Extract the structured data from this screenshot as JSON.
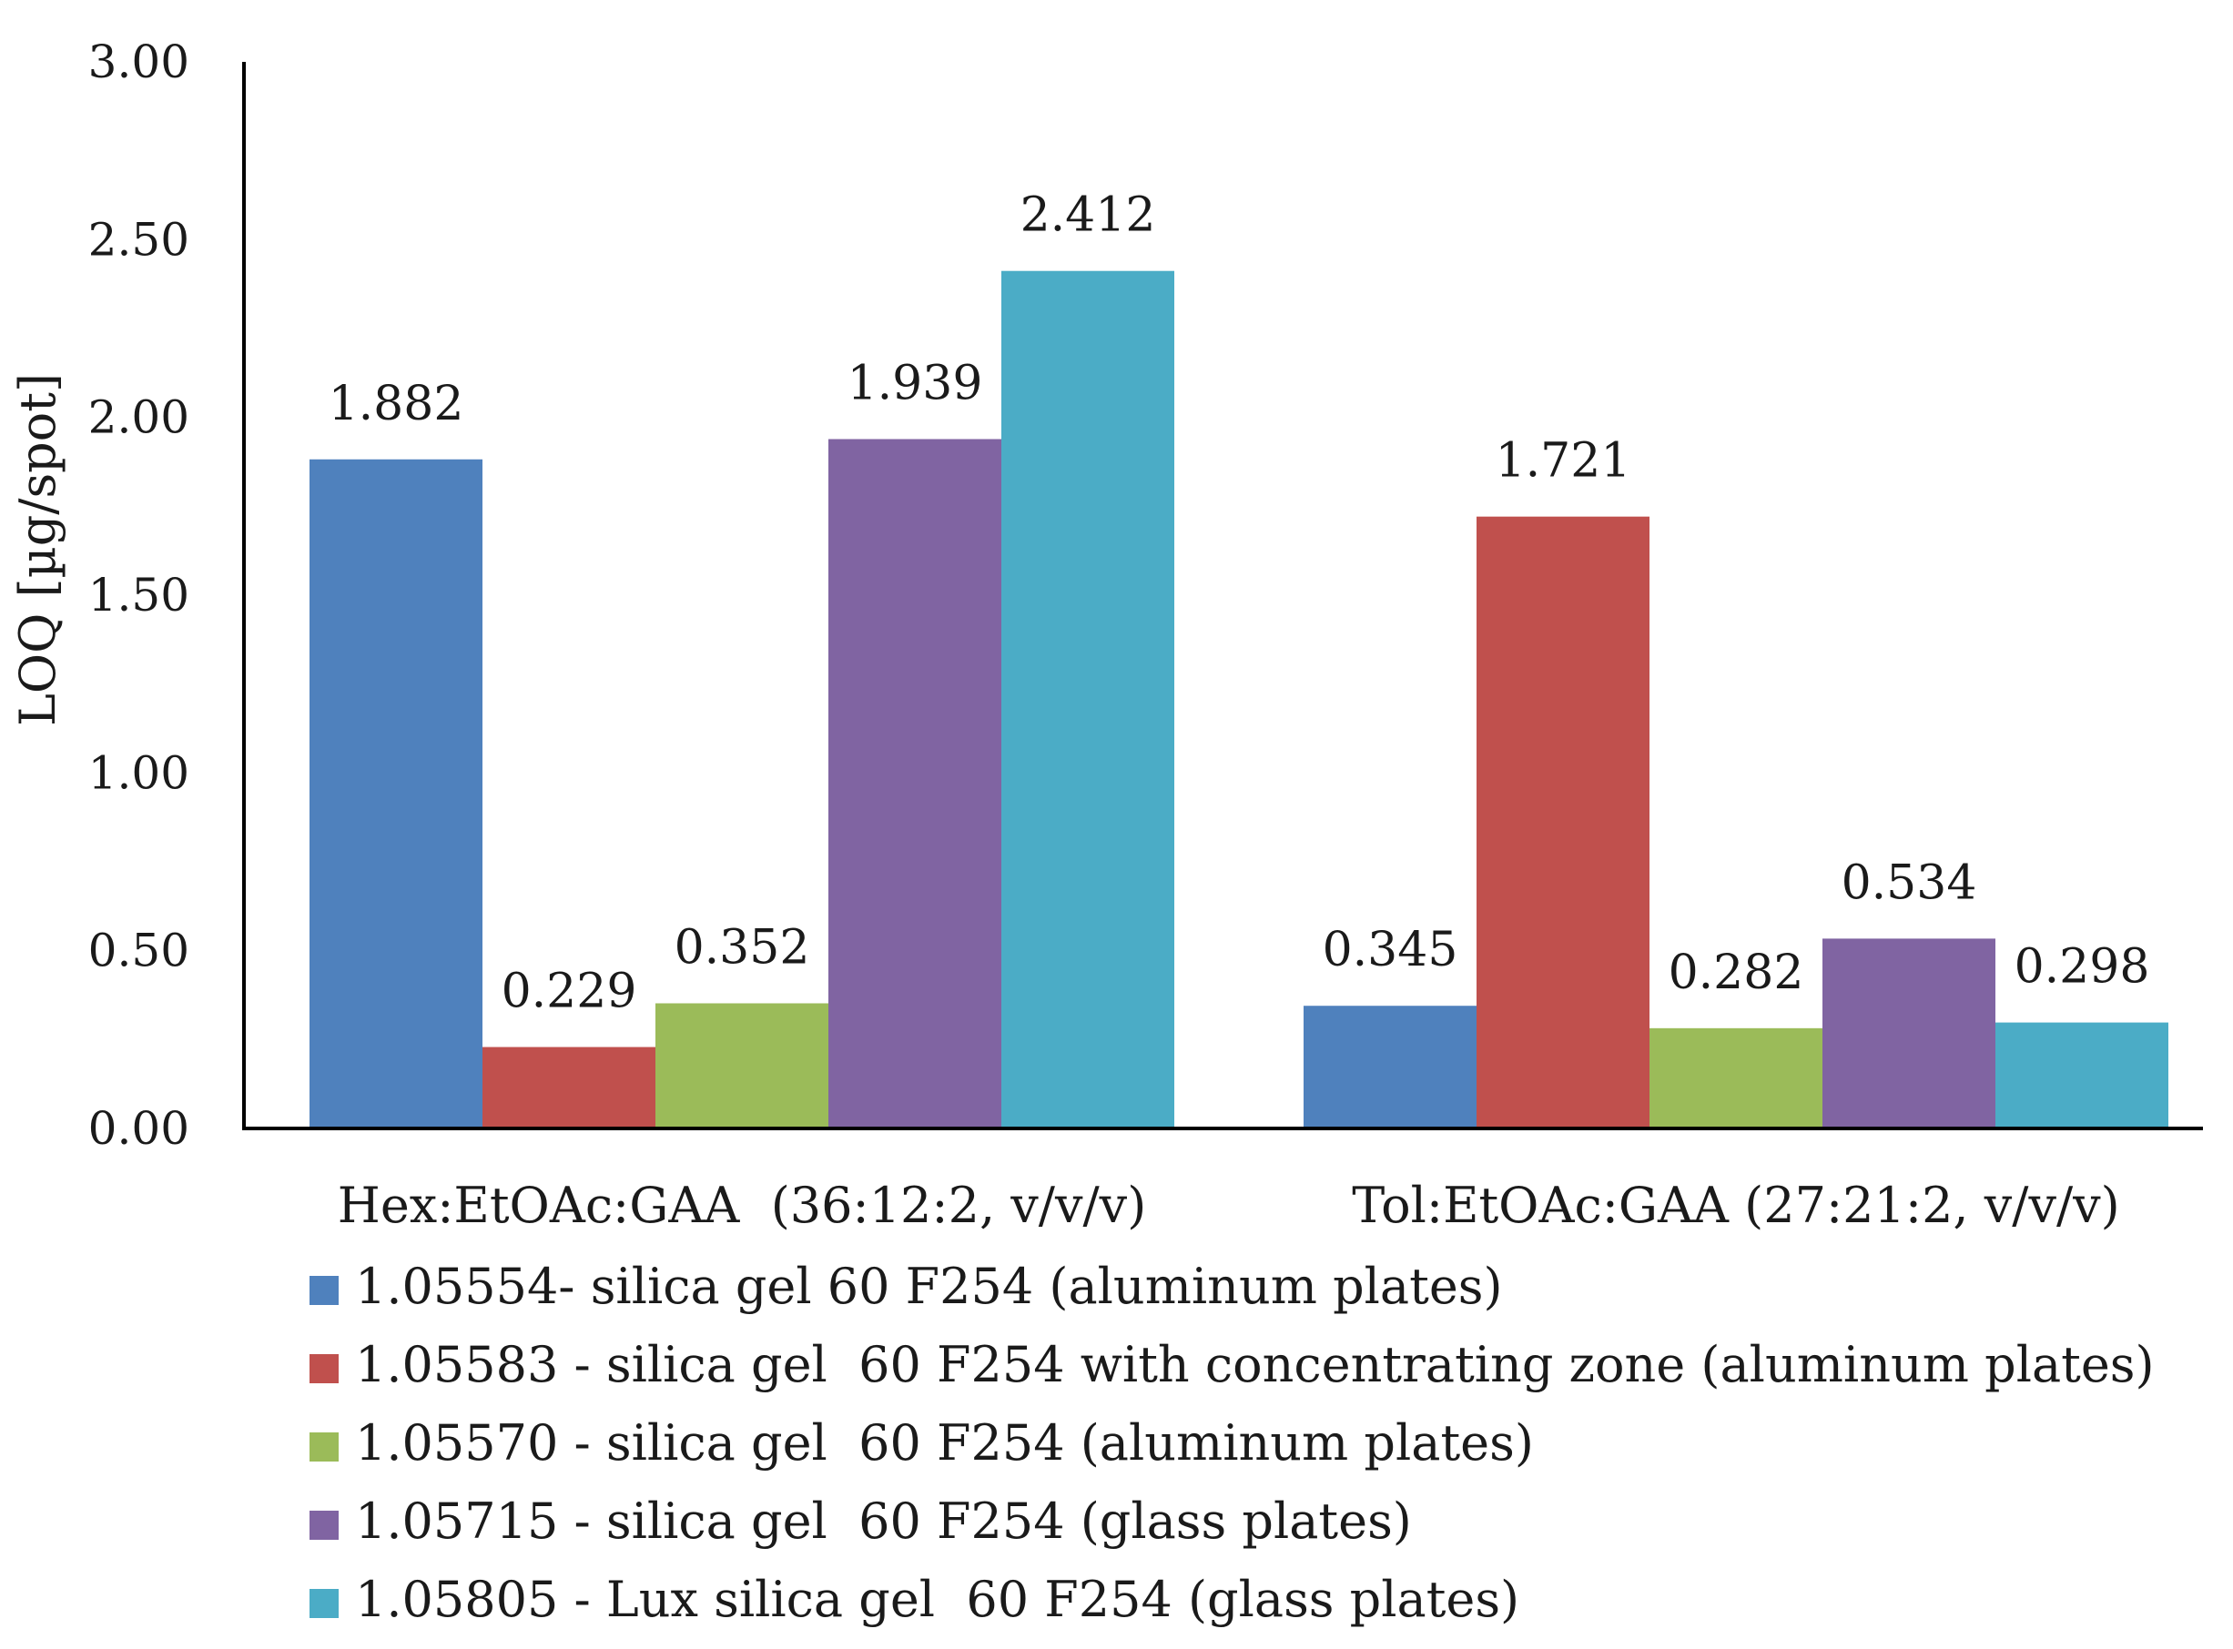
{
  "chart_data": {
    "type": "bar",
    "title": "",
    "xlabel": "",
    "ylabel": "LOQ [µg/spot]",
    "ylim": [
      0,
      3.0
    ],
    "yticks": [
      "0.00",
      "0.50",
      "1.00",
      "1.50",
      "2.00",
      "2.50",
      "3.00"
    ],
    "grid": false,
    "legend_position": "bottom",
    "categories": [
      "Hex:EtOAc:GAA  (36:12:2, v/v/v)",
      "Tol:EtOAc:GAA (27:21:2, v/v/v)"
    ],
    "series": [
      {
        "name": "1.05554- silica gel 60 F254 (aluminum plates)",
        "color": "#4f81bd",
        "values": [
          1.882,
          0.345
        ],
        "labels": [
          "1.882",
          "0.345"
        ]
      },
      {
        "name": "1.05583 - silica gel  60 F254 with concentrating zone (aluminum plates)",
        "color": "#c0504d",
        "values": [
          0.229,
          1.721
        ],
        "labels": [
          "0.229",
          "1.721"
        ]
      },
      {
        "name": "1.05570 - silica gel  60 F254 (aluminum plates)",
        "color": "#9bbb59",
        "values": [
          0.352,
          0.282
        ],
        "labels": [
          "0.352",
          "0.282"
        ]
      },
      {
        "name": "1.05715 - silica gel  60 F254 (glass plates)",
        "color": "#8064a2",
        "values": [
          1.939,
          0.534
        ],
        "labels": [
          "1.939",
          "0.534"
        ]
      },
      {
        "name": "1.05805 - Lux silica gel  60 F254 (glass plates)",
        "color": "#4bacc6",
        "values": [
          2.412,
          0.298
        ],
        "labels": [
          "2.412",
          "0.298"
        ]
      }
    ]
  }
}
